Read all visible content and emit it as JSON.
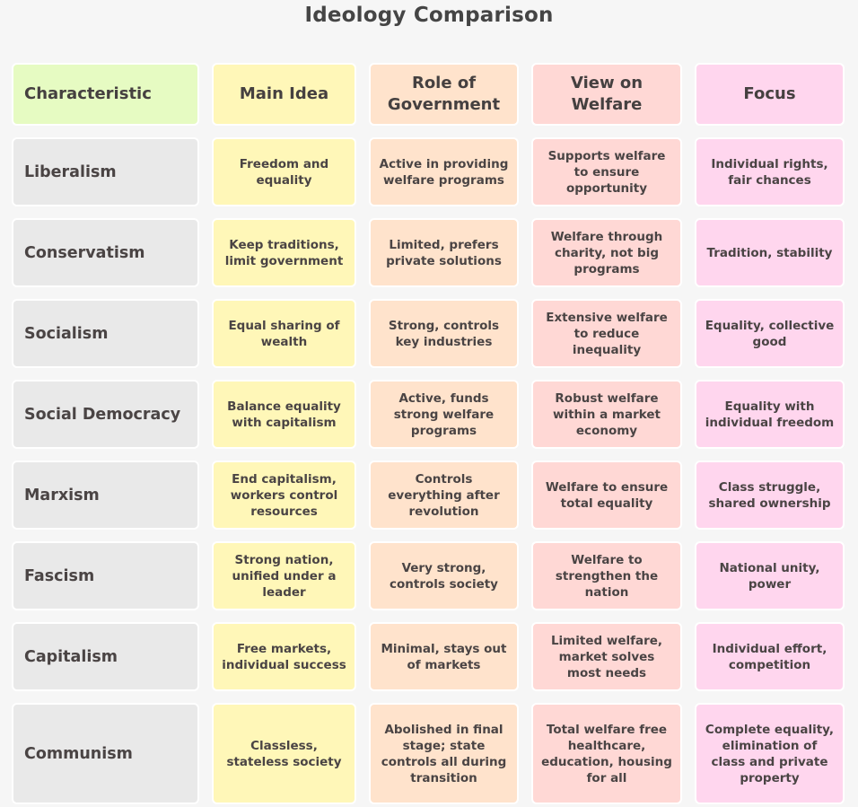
{
  "title": "Ideology Comparison",
  "colors": {
    "background": "#f6f6f6",
    "characteristic_header": "#e6fbc2",
    "ideology_column": "#e9e9e9",
    "main_idea": "#fff7b8",
    "role_of_government": "#ffe3cc",
    "view_on_welfare": "#ffd8d5",
    "focus": "#ffd6ee",
    "text": "#444444"
  },
  "table": {
    "headers": [
      "Characteristic",
      "Main Idea",
      "Role of Government",
      "View on Welfare",
      "Focus"
    ],
    "rows": [
      {
        "ideology": "Liberalism",
        "main_idea": "Freedom and equality",
        "role_of_government": "Active in providing welfare programs",
        "view_on_welfare": "Supports welfare to ensure opportunity",
        "focus": "Individual rights, fair chances"
      },
      {
        "ideology": "Conservatism",
        "main_idea": "Keep traditions, limit government",
        "role_of_government": "Limited, prefers private solutions",
        "view_on_welfare": "Welfare through charity, not big programs",
        "focus": "Tradition, stability"
      },
      {
        "ideology": "Socialism",
        "main_idea": "Equal sharing of wealth",
        "role_of_government": "Strong, controls key industries",
        "view_on_welfare": "Extensive welfare to reduce inequality",
        "focus": "Equality, collective good"
      },
      {
        "ideology": "Social Democracy",
        "main_idea": "Balance equality with capitalism",
        "role_of_government": "Active, funds strong welfare programs",
        "view_on_welfare": "Robust welfare within a market economy",
        "focus": "Equality with individual freedom"
      },
      {
        "ideology": "Marxism",
        "main_idea": "End capitalism, workers control resources",
        "role_of_government": "Controls everything after revolution",
        "view_on_welfare": "Welfare to ensure total equality",
        "focus": "Class struggle, shared ownership"
      },
      {
        "ideology": "Fascism",
        "main_idea": "Strong nation, unified under a leader",
        "role_of_government": "Very strong, controls society",
        "view_on_welfare": "Welfare to strengthen the nation",
        "focus": "National unity, power"
      },
      {
        "ideology": "Capitalism",
        "main_idea": "Free markets, individual success",
        "role_of_government": "Minimal, stays out of markets",
        "view_on_welfare": "Limited welfare, market solves most needs",
        "focus": "Individual effort, competition"
      },
      {
        "ideology": "Communism",
        "main_idea": "Classless, stateless society",
        "role_of_government": "Abolished in final stage; state controls all during transition",
        "view_on_welfare": "Total welfare free healthcare, education, housing for all",
        "focus": "Complete equality, elimination of class and private property"
      }
    ]
  }
}
